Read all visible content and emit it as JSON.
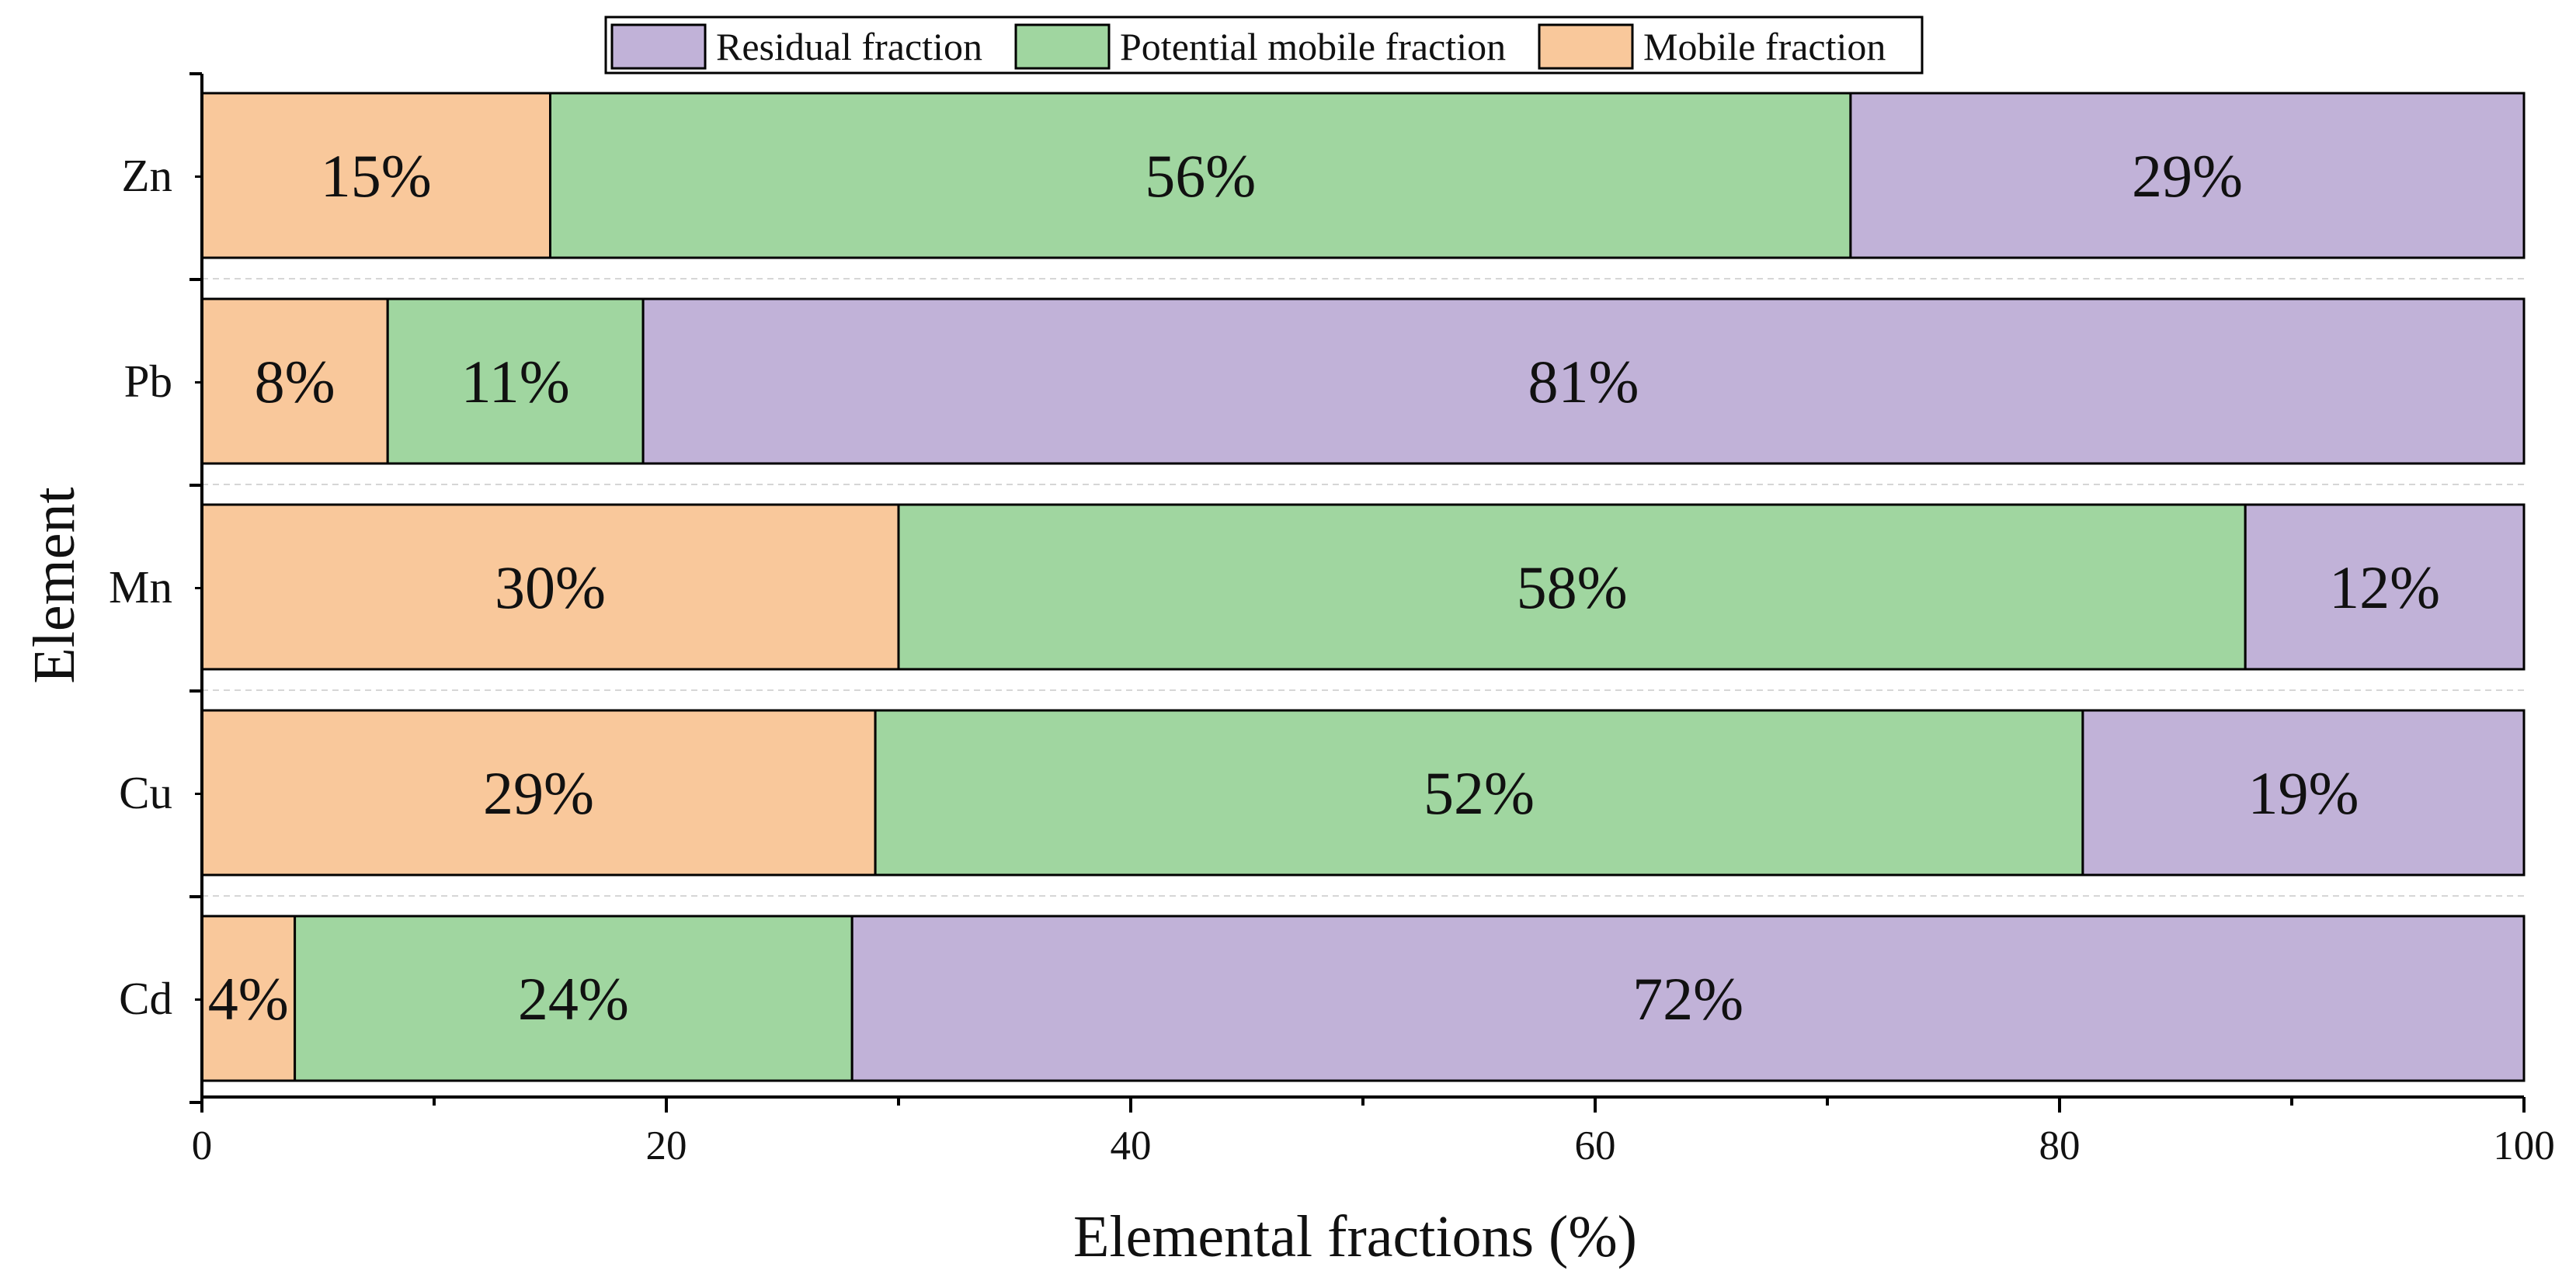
{
  "chart_data": {
    "type": "bar",
    "orientation": "horizontal",
    "stacked": true,
    "xlabel": "Elemental fractions (%)",
    "ylabel": "Element",
    "xlim": [
      0,
      100
    ],
    "xticks": [
      "0",
      "20",
      "40",
      "60",
      "80",
      "100"
    ],
    "categories": [
      "Zn",
      "Pb",
      "Mn",
      "Cu",
      "Cd"
    ],
    "series": [
      {
        "name": "Mobile fraction",
        "color": "#f9c89b",
        "values": [
          15,
          8,
          30,
          29,
          4
        ]
      },
      {
        "name": "Potential mobile fraction",
        "color": "#a0d6a0",
        "values": [
          56,
          11,
          58,
          52,
          24
        ]
      },
      {
        "name": "Residual fraction",
        "color": "#c1b2d8",
        "values": [
          29,
          81,
          12,
          19,
          72
        ]
      }
    ],
    "labels": {
      "Mobile fraction": [
        "15%",
        "8%",
        "30%",
        "29%",
        "4%"
      ],
      "Potential mobile fraction": [
        "56%",
        "11%",
        "58%",
        "52%",
        "24%"
      ],
      "Residual fraction": [
        "29%",
        "81%",
        "12%",
        "19%",
        "72%"
      ]
    },
    "legend": {
      "position": "top-center",
      "order": [
        "Residual fraction",
        "Potential mobile fraction",
        "Mobile fraction"
      ]
    }
  }
}
